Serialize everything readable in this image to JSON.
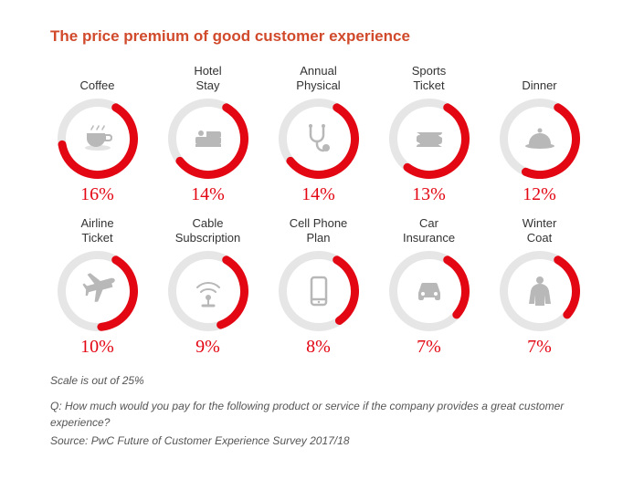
{
  "title": "The price premium of good customer experience",
  "title_color": "#d04a2b",
  "scale_max": 25,
  "gauge": {
    "size": 88,
    "stroke_width": 9,
    "track_color": "#e6e6e6",
    "arc_color": "#e30613",
    "icon_color": "#b8b8b8"
  },
  "pct_color": "#e30613",
  "items": [
    {
      "label1": "Coffee",
      "label2": "",
      "value": 16,
      "icon": "coffee"
    },
    {
      "label1": "Hotel",
      "label2": "Stay",
      "value": 14,
      "icon": "hotel"
    },
    {
      "label1": "Annual",
      "label2": "Physical",
      "value": 14,
      "icon": "stethoscope"
    },
    {
      "label1": "Sports",
      "label2": "Ticket",
      "value": 13,
      "icon": "ticket"
    },
    {
      "label1": "Dinner",
      "label2": "",
      "value": 12,
      "icon": "dinner"
    },
    {
      "label1": "Airline",
      "label2": "Ticket",
      "value": 10,
      "icon": "plane"
    },
    {
      "label1": "Cable",
      "label2": "Subscription",
      "value": 9,
      "icon": "cable"
    },
    {
      "label1": "Cell Phone",
      "label2": "Plan",
      "value": 8,
      "icon": "phone"
    },
    {
      "label1": "Car",
      "label2": "Insurance",
      "value": 7,
      "icon": "car"
    },
    {
      "label1": "Winter",
      "label2": "Coat",
      "value": 7,
      "icon": "coat"
    }
  ],
  "footer": {
    "scale_note": "Scale is out of 25%",
    "question": "Q: How much would you pay for the following product or service if the company provides a great customer experience?",
    "source": "Source: PwC Future of Customer Experience Survey 2017/18"
  }
}
